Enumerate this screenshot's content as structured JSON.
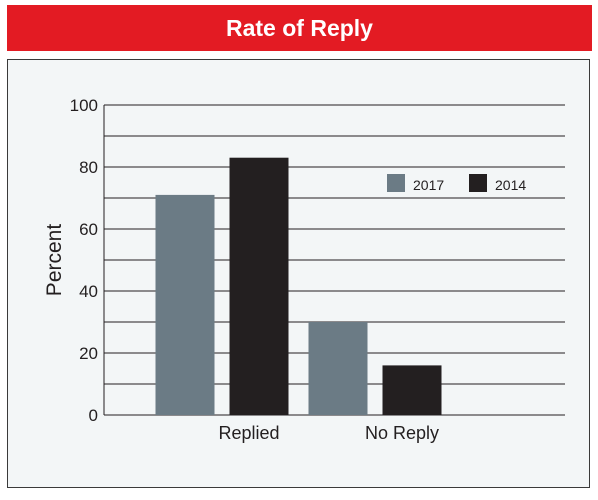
{
  "chart_data": {
    "type": "bar",
    "title": "Rate of Reply",
    "xlabel": "",
    "ylabel": "Percent",
    "ylim": [
      0,
      100
    ],
    "yticks": [
      0,
      20,
      40,
      60,
      80,
      100
    ],
    "grid": true,
    "gridlines": [
      10,
      20,
      30,
      40,
      50,
      60,
      70,
      80,
      90,
      100
    ],
    "legend_position": "top-right",
    "categories": [
      "Replied",
      "No Reply"
    ],
    "series": [
      {
        "name": "2017",
        "color": "#6b7b85",
        "values": [
          71,
          30
        ]
      },
      {
        "name": "2014",
        "color": "#231f20",
        "values": [
          83,
          16
        ]
      }
    ]
  }
}
